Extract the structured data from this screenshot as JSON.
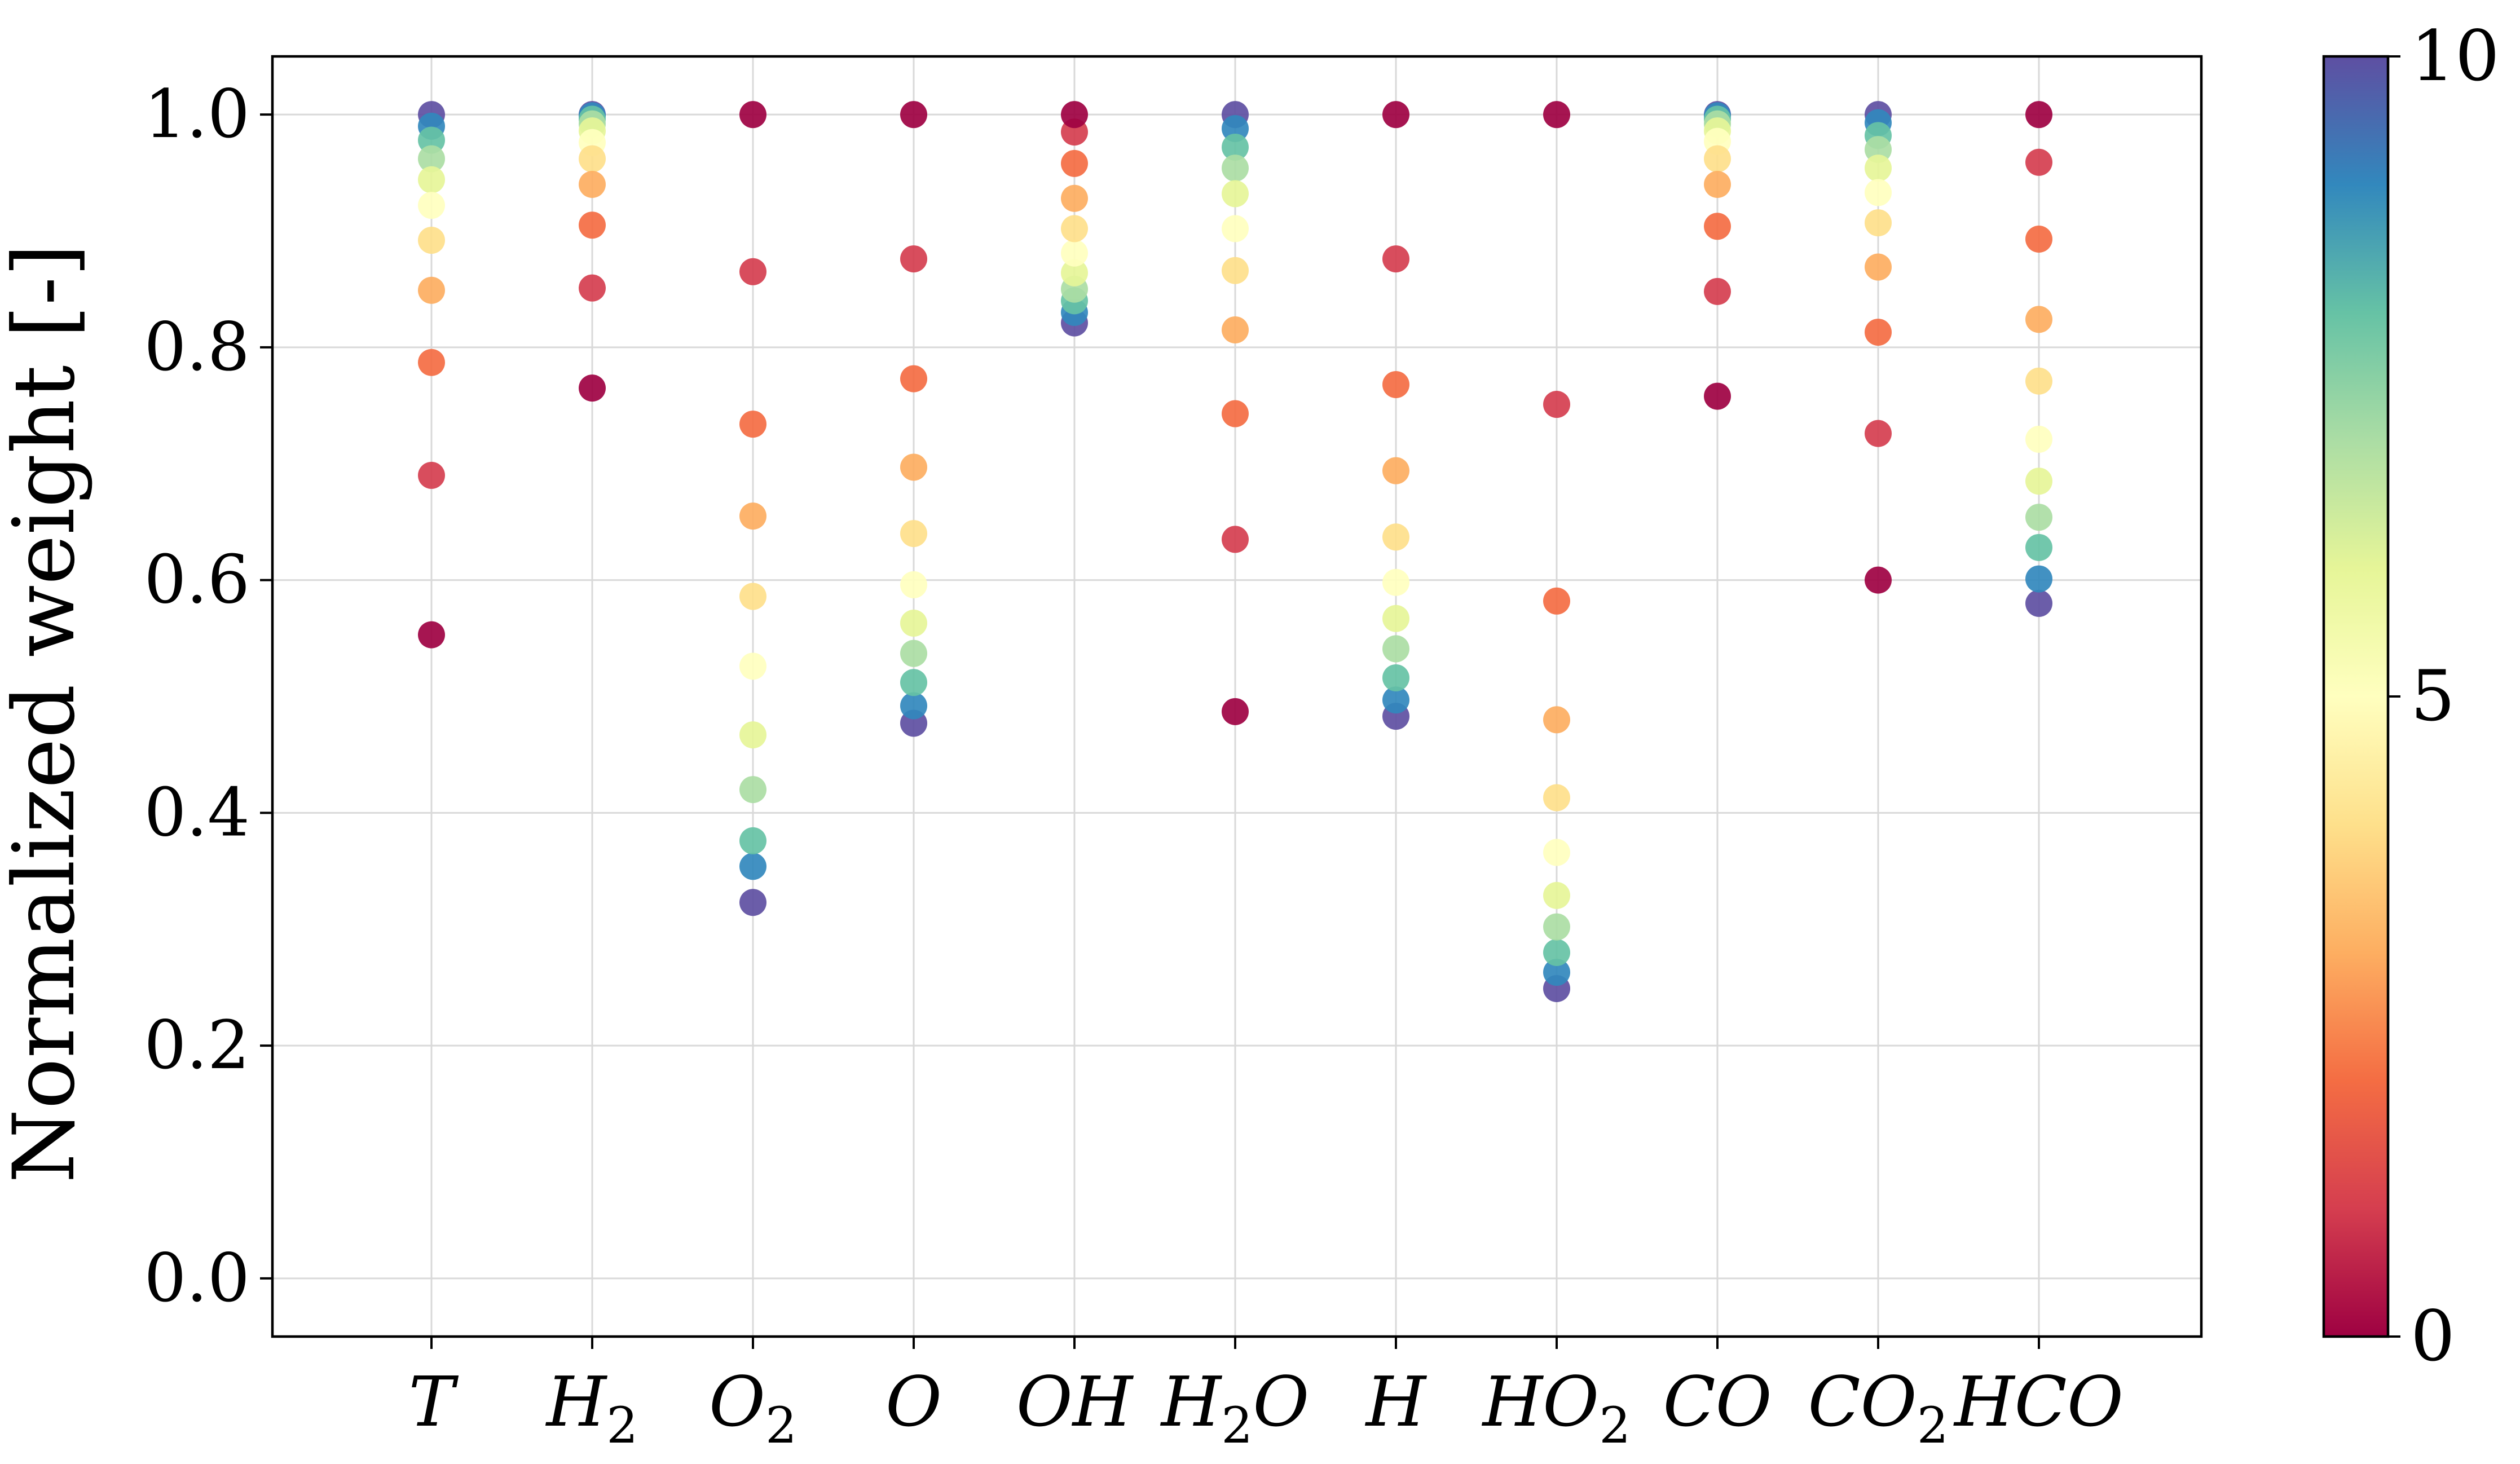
{
  "chart_data": {
    "type": "scatter",
    "title": "",
    "xlabel": "",
    "ylabel": "Normalized weight [-]",
    "ylim": [
      -0.05,
      1.05
    ],
    "yticks": [
      "0.0",
      "0.2",
      "0.4",
      "0.6",
      "0.8",
      "1.0"
    ],
    "grid": true,
    "categories": [
      {
        "label": "T",
        "sub": ""
      },
      {
        "label": "H",
        "sub": "2"
      },
      {
        "label": "O",
        "sub": "2"
      },
      {
        "label": "O",
        "sub": ""
      },
      {
        "label": "OH",
        "sub": ""
      },
      {
        "label": "H",
        "sub": "2",
        "tail": "O"
      },
      {
        "label": "H",
        "sub": ""
      },
      {
        "label": "HO",
        "sub": "2"
      },
      {
        "label": "CO",
        "sub": ""
      },
      {
        "label": "CO",
        "sub": "2"
      },
      {
        "label": "HCO",
        "sub": ""
      }
    ],
    "colorbar": {
      "colormap": "Spectral",
      "min": 0,
      "max": 10,
      "ticks": [
        "0",
        "5",
        "10"
      ]
    },
    "series": [
      {
        "values": [
          0.553,
          0.69,
          0.787,
          0.849,
          0.892,
          0.922,
          0.944,
          0.962,
          0.978,
          0.99,
          1.0
        ]
      },
      {
        "values": [
          0.765,
          0.851,
          0.905,
          0.94,
          0.962,
          0.976,
          0.986,
          0.992,
          0.996,
          0.999,
          1.0
        ]
      },
      {
        "values": [
          1.0,
          0.865,
          0.734,
          0.655,
          0.586,
          0.526,
          0.467,
          0.42,
          0.376,
          0.354,
          0.323
        ]
      },
      {
        "values": [
          1.0,
          0.876,
          0.773,
          0.697,
          0.64,
          0.596,
          0.563,
          0.537,
          0.512,
          0.492,
          0.477
        ]
      },
      {
        "values": [
          1.0,
          0.985,
          0.958,
          0.928,
          0.902,
          0.881,
          0.864,
          0.85,
          0.84,
          0.83,
          0.821
        ]
      },
      {
        "values": [
          0.487,
          0.635,
          0.743,
          0.815,
          0.866,
          0.902,
          0.932,
          0.954,
          0.972,
          0.988,
          1.0
        ]
      },
      {
        "values": [
          1.0,
          0.876,
          0.768,
          0.694,
          0.637,
          0.598,
          0.567,
          0.541,
          0.516,
          0.497,
          0.483
        ]
      },
      {
        "values": [
          1.0,
          0.751,
          0.582,
          0.48,
          0.413,
          0.366,
          0.329,
          0.302,
          0.28,
          0.263,
          0.249
        ]
      },
      {
        "values": [
          0.758,
          0.848,
          0.904,
          0.94,
          0.962,
          0.977,
          0.986,
          0.992,
          0.996,
          0.999,
          1.0
        ]
      },
      {
        "values": [
          0.6,
          0.726,
          0.813,
          0.869,
          0.907,
          0.933,
          0.954,
          0.97,
          0.982,
          0.993,
          1.0
        ]
      },
      {
        "values": [
          1.0,
          0.959,
          0.893,
          0.824,
          0.771,
          0.721,
          0.685,
          0.654,
          0.628,
          0.601,
          0.58
        ]
      }
    ]
  }
}
